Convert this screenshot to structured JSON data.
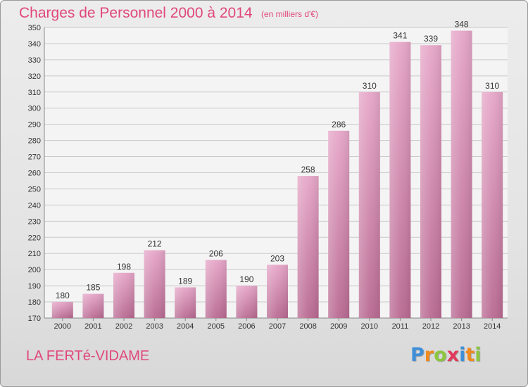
{
  "chart_data": {
    "type": "bar",
    "title": "Charges de Personnel 2000 à 2014",
    "subtitle": "(en milliers d'€)",
    "categories": [
      "2000",
      "2001",
      "2002",
      "2003",
      "2004",
      "2005",
      "2006",
      "2007",
      "2008",
      "2009",
      "2010",
      "2011",
      "2012",
      "2013",
      "2014"
    ],
    "values": [
      180,
      185,
      198,
      212,
      189,
      206,
      190,
      203,
      258,
      286,
      310,
      341,
      339,
      348,
      310
    ],
    "ylim": [
      170,
      350
    ],
    "yticks": [
      170,
      180,
      190,
      200,
      210,
      220,
      230,
      240,
      250,
      260,
      270,
      280,
      290,
      300,
      310,
      320,
      330,
      340,
      350
    ],
    "grid": true,
    "bar_color": "#d67fa9"
  },
  "commune": "LA FERTé-VIDAME",
  "brand": {
    "letters": [
      "P",
      "r",
      "o",
      "x",
      "i",
      "t",
      "i"
    ],
    "colors": [
      "#3f8fd8",
      "#f08a1c",
      "#8cc63f",
      "#e23a5a",
      "#3f8fd8",
      "#f08a1c",
      "#8cc63f"
    ]
  },
  "colors": {
    "accent": "#e0487a"
  }
}
